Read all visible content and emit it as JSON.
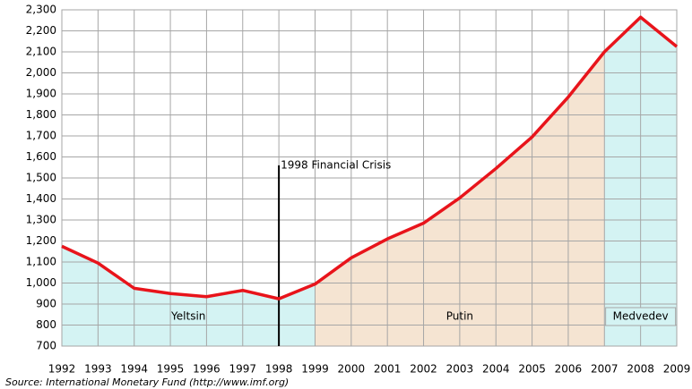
{
  "chart_data": {
    "type": "line",
    "x": [
      1992,
      1993,
      1994,
      1995,
      1996,
      1997,
      1998,
      1999,
      2000,
      2001,
      2002,
      2003,
      2004,
      2005,
      2006,
      2007,
      2008,
      2009
    ],
    "series": [
      {
        "color": "#e8141b",
        "values": [
          1175,
          1095,
          975,
          950,
          935,
          965,
          925,
          995,
          1120,
          1210,
          1285,
          1405,
          1545,
          1695,
          1885,
          2100,
          2265,
          2125
        ]
      }
    ],
    "xlim": [
      1992,
      2009
    ],
    "xticks": [
      1992,
      1993,
      1994,
      1995,
      1996,
      1997,
      1998,
      1999,
      2000,
      2001,
      2002,
      2003,
      2004,
      2005,
      2006,
      2007,
      2008,
      2009
    ],
    "ylim": [
      700,
      2300
    ],
    "yticks": [
      {
        "value": 700,
        "label": "700"
      },
      {
        "value": 800,
        "label": "800"
      },
      {
        "value": 900,
        "label": "900"
      },
      {
        "value": 1000,
        "label": "1,000"
      },
      {
        "value": 1100,
        "label": "1,100"
      },
      {
        "value": 1200,
        "label": "1,200"
      },
      {
        "value": 1300,
        "label": "1,300"
      },
      {
        "value": 1400,
        "label": "1,400"
      },
      {
        "value": 1500,
        "label": "1,500"
      },
      {
        "value": 1600,
        "label": "1,600"
      },
      {
        "value": 1700,
        "label": "1,700"
      },
      {
        "value": 1800,
        "label": "1,800"
      },
      {
        "value": 1900,
        "label": "1,900"
      },
      {
        "value": 2000,
        "label": "2,000"
      },
      {
        "value": 2100,
        "label": "2,100"
      },
      {
        "value": 2200,
        "label": "2,200"
      },
      {
        "value": 2300,
        "label": "2,300"
      }
    ],
    "grid": true,
    "periods": [
      {
        "name": "Yeltsin",
        "start": 1992,
        "end": 1999,
        "color": "#d4f3f3",
        "boxed": false
      },
      {
        "name": "Putin",
        "start": 1999,
        "end": 2007,
        "color": "#f5e4d2",
        "boxed": false
      },
      {
        "name": "Medvedev",
        "start": 2007,
        "end": 2009,
        "color": "#d4f3f3",
        "boxed": true
      }
    ],
    "annotations": [
      {
        "text": "1998 Financial Crisis",
        "x": 1998,
        "y": 1560
      }
    ],
    "source": "Source: International Monetary Fund (http://www.imf.org)"
  }
}
